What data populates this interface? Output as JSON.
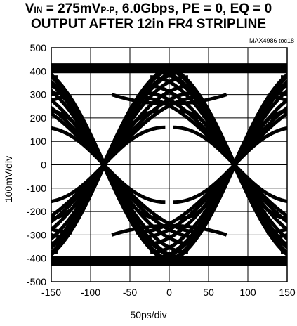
{
  "chart_data": {
    "type": "eye-diagram",
    "title_line1_main": "V",
    "title_line1_sub1": "IN",
    "title_line1_mid": " = 275mV",
    "title_line1_sub2": "P-P",
    "title_line1_rest": ", 6.0Gbps, PE = 0, EQ = 0",
    "title_line2": "OUTPUT AFTER 12in FR4 STRIPLINE",
    "figure_tag": "MAX4986 toc18",
    "xlabel": "50ps/div",
    "ylabel": "100mV/div",
    "x_ticks": [
      "-150",
      "-100",
      "-50",
      "0",
      "50",
      "100",
      "150"
    ],
    "y_ticks": [
      "500",
      "400",
      "300",
      "200",
      "100",
      "0",
      "-100",
      "-200",
      "-300",
      "-400",
      "-500"
    ],
    "xlim": [
      -150,
      150
    ],
    "ylim": [
      -500,
      500
    ],
    "grid": true,
    "levels": {
      "high": [
        420,
        400,
        375,
        340,
        310,
        290
      ],
      "low": [
        -420,
        -400,
        -375,
        -340,
        -310,
        -290
      ]
    },
    "crossings_ps": [
      -83,
      83
    ],
    "trace_color": "#000000",
    "grid_color": "#000000"
  }
}
